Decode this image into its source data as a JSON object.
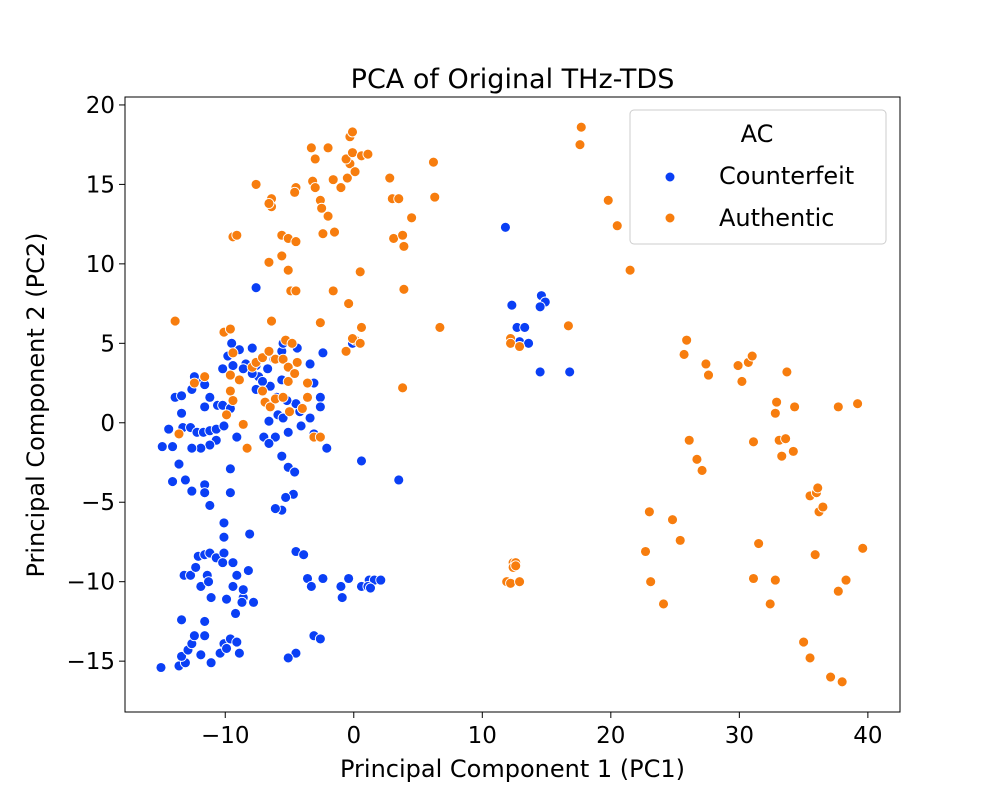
{
  "chart_data": {
    "type": "scatter",
    "title": "PCA of Original THz-TDS",
    "xlabel": "Principal Component 1 (PC1)",
    "ylabel": "Principal Component 2 (PC2)",
    "xlim": [
      -17.8,
      42.5
    ],
    "ylim": [
      -18.2,
      20.5
    ],
    "xticks": [
      -10,
      0,
      10,
      20,
      30,
      40
    ],
    "xtick_labels": [
      "−10",
      "0",
      "10",
      "20",
      "30",
      "40"
    ],
    "yticks": [
      -15,
      -10,
      -5,
      0,
      5,
      10,
      15,
      20
    ],
    "ytick_labels": [
      "−15",
      "−10",
      "−5",
      "0",
      "5",
      "10",
      "15",
      "20"
    ],
    "grid": false,
    "legend": {
      "title": "AC",
      "placement": "top-right"
    },
    "series": [
      {
        "name": "Counterfeit",
        "color": "#0a3ff5",
        "points": [
          [
            -15,
            -15.4
          ],
          [
            -13.6,
            -15.3
          ],
          [
            -13.1,
            -15.1
          ],
          [
            -13.4,
            -14.7
          ],
          [
            -12.9,
            -14.3
          ],
          [
            -12.6,
            -13.9
          ],
          [
            -11.9,
            -14.6
          ],
          [
            -11.1,
            -15.1
          ],
          [
            -10.4,
            -14.5
          ],
          [
            -10.1,
            -13.9
          ],
          [
            -9.6,
            -13.6
          ],
          [
            -9.1,
            -13.8
          ],
          [
            -11.6,
            -13.4
          ],
          [
            -12.4,
            -13.4
          ],
          [
            -11.6,
            -12.5
          ],
          [
            -13.4,
            -12.4
          ],
          [
            -13.2,
            -9.6
          ],
          [
            -12.7,
            -9.6
          ],
          [
            -12.1,
            -8.4
          ],
          [
            -11.6,
            -8.3
          ],
          [
            -11.2,
            -8.2
          ],
          [
            -10.7,
            -8.5
          ],
          [
            -10.1,
            -8.2
          ],
          [
            -11.4,
            -9.6
          ],
          [
            -10.2,
            -8.8
          ],
          [
            -9.4,
            -8.8
          ],
          [
            -9.1,
            -9.6
          ],
          [
            -9.4,
            -10.3
          ],
          [
            -9.9,
            -11.1
          ],
          [
            -11.1,
            -11.0
          ],
          [
            -9.2,
            -12.0
          ],
          [
            -8.6,
            -11.0
          ],
          [
            -8.2,
            -9.3
          ],
          [
            -8.6,
            -10.5
          ],
          [
            -8.7,
            -11.3
          ],
          [
            -7.8,
            -11.3
          ],
          [
            -11.9,
            -10.3
          ],
          [
            -11.3,
            -10.0
          ],
          [
            -12.3,
            -9.1
          ],
          [
            -8.1,
            -7.0
          ],
          [
            -10.1,
            -7.2
          ],
          [
            -10.1,
            -6.3
          ],
          [
            -11.2,
            -5.2
          ],
          [
            -11.6,
            -3.9
          ],
          [
            -11.6,
            -4.4
          ],
          [
            -12.6,
            -4.3
          ],
          [
            -13.1,
            -3.6
          ],
          [
            -14.1,
            -3.7
          ],
          [
            -13.6,
            -2.6
          ],
          [
            -14.9,
            -1.5
          ],
          [
            -14.1,
            -1.5
          ],
          [
            -14.4,
            -0.4
          ],
          [
            -13.3,
            -0.3
          ],
          [
            -12.7,
            -0.3
          ],
          [
            -12.2,
            -0.6
          ],
          [
            -11.7,
            -0.6
          ],
          [
            -11.2,
            -0.5
          ],
          [
            -10.7,
            -0.4
          ],
          [
            -10.1,
            -0.2
          ],
          [
            -10.7,
            -1.1
          ],
          [
            -11.2,
            -1.4
          ],
          [
            -11.9,
            -1.6
          ],
          [
            -12.6,
            -1.6
          ],
          [
            -9.6,
            -2.9
          ],
          [
            -9.6,
            -4.4
          ],
          [
            -9.1,
            -0.9
          ],
          [
            -13.4,
            0.6
          ],
          [
            -13.9,
            1.6
          ],
          [
            -13.4,
            1.7
          ],
          [
            -12.6,
            2.1
          ],
          [
            -12.2,
            2.7
          ],
          [
            -11.6,
            2.4
          ],
          [
            -11.2,
            1.6
          ],
          [
            -10.6,
            1.1
          ],
          [
            -10.2,
            1.1
          ],
          [
            -9.6,
            0.9
          ],
          [
            -11.6,
            1.0
          ],
          [
            -12.4,
            2.9
          ],
          [
            -10.2,
            3.4
          ],
          [
            -9.4,
            3.6
          ],
          [
            -9.8,
            4.2
          ],
          [
            -9.5,
            5.0
          ],
          [
            -8.4,
            3.7
          ],
          [
            -8.9,
            4.6
          ],
          [
            -7.9,
            4.7
          ],
          [
            -7.6,
            3.6
          ],
          [
            -7.4,
            2.9
          ],
          [
            -6.7,
            3.4
          ],
          [
            -6.2,
            4.0
          ],
          [
            -5.6,
            4.5
          ],
          [
            -5.5,
            5.0
          ],
          [
            -4.4,
            4.7
          ],
          [
            -2.4,
            4.4
          ],
          [
            -3.4,
            3.7
          ],
          [
            -3.1,
            2.5
          ],
          [
            -2.6,
            1.6
          ],
          [
            -2.6,
            1.0
          ],
          [
            -3.4,
            0.3
          ],
          [
            -4.2,
            0.7
          ],
          [
            -4.5,
            1.2
          ],
          [
            -5.2,
            1.4
          ],
          [
            -6.0,
            1.6
          ],
          [
            -6.5,
            2.3
          ],
          [
            -5.6,
            2.7
          ],
          [
            -7.1,
            2.6
          ],
          [
            -7.6,
            2.1
          ],
          [
            -7.9,
            3.1
          ],
          [
            -8.6,
            3.4
          ],
          [
            -5.9,
            0.5
          ],
          [
            -6.6,
            0.1
          ],
          [
            -7.0,
            -0.9
          ],
          [
            -6.1,
            -0.9
          ],
          [
            -5.1,
            -0.6
          ],
          [
            -5.5,
            0.3
          ],
          [
            -4.1,
            -0.2
          ],
          [
            -3.1,
            -0.7
          ],
          [
            -2.1,
            -1.6
          ],
          [
            -6.6,
            -1.3
          ],
          [
            -5.6,
            -2.1
          ],
          [
            -5.1,
            -2.8
          ],
          [
            -4.6,
            -3.1
          ],
          [
            -4.7,
            -4.5
          ],
          [
            -5.3,
            -4.7
          ],
          [
            -5.6,
            -5.5
          ],
          [
            -6.1,
            -5.4
          ],
          [
            -4.5,
            -8.1
          ],
          [
            -3.9,
            -8.3
          ],
          [
            -3.6,
            -9.8
          ],
          [
            -3.3,
            -10.3
          ],
          [
            -2.4,
            -9.8
          ],
          [
            -0.4,
            -9.8
          ],
          [
            -1.0,
            -10.3
          ],
          [
            -0.9,
            -11.0
          ],
          [
            0.6,
            -10.3
          ],
          [
            1.2,
            -9.9
          ],
          [
            1.6,
            -9.9
          ],
          [
            2.1,
            -9.9
          ],
          [
            1.1,
            -10.3
          ],
          [
            1.3,
            -10.4
          ],
          [
            -3.1,
            -13.4
          ],
          [
            -2.6,
            -13.6
          ],
          [
            -4.5,
            -14.5
          ],
          [
            -5.1,
            -14.8
          ],
          [
            -8.9,
            -14.5
          ],
          [
            -9.9,
            -14.2
          ],
          [
            0.6,
            -2.4
          ],
          [
            3.5,
            -3.6
          ],
          [
            -7.6,
            8.5
          ],
          [
            -0.1,
            5.0
          ],
          [
            11.8,
            12.3
          ],
          [
            12.3,
            7.4
          ],
          [
            12.7,
            6.0
          ],
          [
            13.3,
            6.0
          ],
          [
            12.9,
            5.1
          ],
          [
            13.6,
            5.0
          ],
          [
            14.6,
            8.0
          ],
          [
            14.9,
            7.6
          ],
          [
            14.5,
            7.3
          ],
          [
            14.5,
            3.2
          ],
          [
            16.8,
            3.2
          ]
        ]
      },
      {
        "name": "Authentic",
        "color": "#f77d0e",
        "points": [
          [
            -13.9,
            6.4
          ],
          [
            -13.6,
            -0.7
          ],
          [
            -12.4,
            2.5
          ],
          [
            -11.6,
            2.9
          ],
          [
            -10.1,
            5.7
          ],
          [
            -9.6,
            5.9
          ],
          [
            -9.4,
            4.4
          ],
          [
            -9.6,
            3.0
          ],
          [
            -8.9,
            2.7
          ],
          [
            -9.6,
            2.0
          ],
          [
            -9.4,
            1.4
          ],
          [
            -9.9,
            0.5
          ],
          [
            -8.6,
            -0.1
          ],
          [
            -7.9,
            3.5
          ],
          [
            -7.6,
            3.8
          ],
          [
            -7.1,
            4.1
          ],
          [
            -6.6,
            4.5
          ],
          [
            -6.1,
            4.0
          ],
          [
            -5.5,
            4.0
          ],
          [
            -5.1,
            3.5
          ],
          [
            -4.6,
            3.1
          ],
          [
            -5.1,
            2.6
          ],
          [
            -4.4,
            3.8
          ],
          [
            -7.1,
            2.0
          ],
          [
            -6.9,
            1.3
          ],
          [
            -6.5,
            1.0
          ],
          [
            -6.1,
            1.5
          ],
          [
            -5.5,
            1.6
          ],
          [
            -5.0,
            0.7
          ],
          [
            -3.6,
            2.5
          ],
          [
            -3.6,
            1.6
          ],
          [
            -4.0,
            0.9
          ],
          [
            -3.1,
            -0.9
          ],
          [
            -2.6,
            -0.9
          ],
          [
            -8.3,
            -1.6
          ],
          [
            -6.4,
            6.4
          ],
          [
            -5.3,
            5.2
          ],
          [
            -4.8,
            5.0
          ],
          [
            -0.6,
            4.5
          ],
          [
            0.1,
            5.2
          ],
          [
            -0.1,
            5.3
          ],
          [
            0.5,
            5.0
          ],
          [
            0.6,
            6.0
          ],
          [
            -2.6,
            6.3
          ],
          [
            -0.4,
            7.5
          ],
          [
            -1.6,
            8.3
          ],
          [
            -4.9,
            8.3
          ],
          [
            -4.5,
            8.3
          ],
          [
            -5.1,
            9.6
          ],
          [
            -5.6,
            10.5
          ],
          [
            -6.6,
            10.1
          ],
          [
            -9.4,
            11.7
          ],
          [
            -9.1,
            11.8
          ],
          [
            -5.6,
            11.8
          ],
          [
            -5.1,
            11.6
          ],
          [
            -4.5,
            11.4
          ],
          [
            -2.4,
            11.9
          ],
          [
            -6.4,
            13.6
          ],
          [
            -6.4,
            14.1
          ],
          [
            -4.5,
            14.8
          ],
          [
            -4.6,
            14.5
          ],
          [
            -3.2,
            15.2
          ],
          [
            -3.0,
            14.8
          ],
          [
            -2.6,
            14.0
          ],
          [
            -2.5,
            13.5
          ],
          [
            -2.0,
            13.0
          ],
          [
            -1.5,
            12.0
          ],
          [
            -1.6,
            15.3
          ],
          [
            -1.0,
            14.8
          ],
          [
            -0.5,
            15.4
          ],
          [
            -0.3,
            16.3
          ],
          [
            0.1,
            15.8
          ],
          [
            -0.6,
            16.6
          ],
          [
            -0.1,
            17.0
          ],
          [
            -2.0,
            17.3
          ],
          [
            -3.0,
            16.6
          ],
          [
            -3.3,
            17.3
          ],
          [
            -0.3,
            18.0
          ],
          [
            -0.1,
            18.3
          ],
          [
            0.6,
            16.8
          ],
          [
            1.1,
            16.9
          ],
          [
            0.5,
            9.5
          ],
          [
            3.0,
            14.1
          ],
          [
            3.5,
            14.1
          ],
          [
            3.1,
            11.6
          ],
          [
            3.8,
            11.8
          ],
          [
            3.9,
            11.1
          ],
          [
            4.5,
            12.9
          ],
          [
            2.8,
            15.4
          ],
          [
            6.2,
            16.4
          ],
          [
            6.3,
            14.2
          ],
          [
            3.9,
            8.4
          ],
          [
            3.8,
            2.2
          ],
          [
            6.7,
            6.0
          ],
          [
            -7.6,
            15.0
          ],
          [
            -6.6,
            13.8
          ],
          [
            12.2,
            5.3
          ],
          [
            12.2,
            5.0
          ],
          [
            12.9,
            4.8
          ],
          [
            12.4,
            -8.8
          ],
          [
            12.6,
            -8.8
          ],
          [
            12.4,
            -9.1
          ],
          [
            12.6,
            -9.0
          ],
          [
            11.9,
            -10.0
          ],
          [
            12.2,
            -10.1
          ],
          [
            12.9,
            -10.0
          ],
          [
            16.7,
            6.1
          ],
          [
            17.7,
            18.6
          ],
          [
            17.6,
            17.5
          ],
          [
            19.8,
            14.0
          ],
          [
            20.5,
            12.4
          ],
          [
            21.5,
            9.6
          ],
          [
            22.7,
            -8.1
          ],
          [
            23.0,
            -5.6
          ],
          [
            23.1,
            -10.0
          ],
          [
            24.1,
            -11.4
          ],
          [
            24.8,
            -6.1
          ],
          [
            25.4,
            -7.4
          ],
          [
            25.7,
            4.3
          ],
          [
            25.9,
            5.2
          ],
          [
            26.1,
            -1.1
          ],
          [
            26.7,
            -2.3
          ],
          [
            27.1,
            -3.0
          ],
          [
            27.4,
            3.7
          ],
          [
            27.6,
            3.0
          ],
          [
            29.9,
            3.6
          ],
          [
            30.2,
            2.6
          ],
          [
            30.7,
            3.8
          ],
          [
            31.0,
            4.2
          ],
          [
            31.1,
            -1.2
          ],
          [
            31.1,
            -9.8
          ],
          [
            31.5,
            -7.6
          ],
          [
            32.4,
            -11.4
          ],
          [
            32.8,
            -9.9
          ],
          [
            32.8,
            0.6
          ],
          [
            32.9,
            1.3
          ],
          [
            33.1,
            -1.1
          ],
          [
            33.3,
            -2.1
          ],
          [
            33.6,
            -1.0
          ],
          [
            33.7,
            3.2
          ],
          [
            34.2,
            -1.8
          ],
          [
            34.3,
            1.0
          ],
          [
            35.0,
            -13.8
          ],
          [
            35.5,
            -14.8
          ],
          [
            35.5,
            -4.6
          ],
          [
            36.0,
            -4.4
          ],
          [
            36.1,
            -4.1
          ],
          [
            35.9,
            -8.3
          ],
          [
            36.2,
            -5.6
          ],
          [
            36.5,
            -5.3
          ],
          [
            37.1,
            -16.0
          ],
          [
            37.7,
            -10.6
          ],
          [
            37.7,
            1.0
          ],
          [
            38.0,
            -16.3
          ],
          [
            38.3,
            -9.9
          ],
          [
            39.2,
            1.2
          ],
          [
            39.6,
            -7.9
          ]
        ]
      }
    ]
  }
}
